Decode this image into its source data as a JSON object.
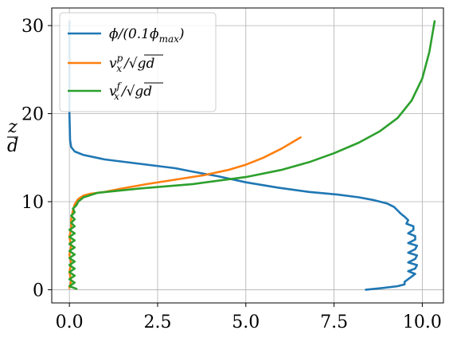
{
  "chart_data": {
    "type": "line",
    "ylabel_num": "z",
    "ylabel_den": "d",
    "xlim": [
      -0.5,
      10.6
    ],
    "ylim": [
      -1.5,
      32.0
    ],
    "xticks": [
      0.0,
      2.5,
      5.0,
      7.5,
      10.0
    ],
    "xtick_labels": [
      "0.0",
      "2.5",
      "5.0",
      "7.5",
      "10.0"
    ],
    "yticks": [
      0,
      10,
      20,
      30
    ],
    "ytick_labels": [
      "0",
      "10",
      "20",
      "30"
    ],
    "grid": true,
    "legend_position": "top-left",
    "series": [
      {
        "name": "ϕ/(0.1ϕmax)",
        "color": "#1f77b4",
        "points": [
          [
            8.4,
            0.0
          ],
          [
            8.9,
            0.2
          ],
          [
            9.3,
            0.4
          ],
          [
            9.5,
            0.6
          ],
          [
            9.5,
            0.9
          ],
          [
            9.6,
            1.2
          ],
          [
            9.7,
            1.5
          ],
          [
            9.8,
            1.8
          ],
          [
            9.6,
            2.1
          ],
          [
            9.8,
            2.4
          ],
          [
            9.85,
            2.8
          ],
          [
            9.6,
            3.1
          ],
          [
            9.8,
            3.5
          ],
          [
            9.85,
            3.9
          ],
          [
            9.6,
            4.2
          ],
          [
            9.8,
            4.6
          ],
          [
            9.85,
            5.0
          ],
          [
            9.6,
            5.3
          ],
          [
            9.8,
            5.7
          ],
          [
            9.8,
            6.1
          ],
          [
            9.6,
            6.4
          ],
          [
            9.75,
            6.8
          ],
          [
            9.75,
            7.2
          ],
          [
            9.55,
            7.5
          ],
          [
            9.6,
            7.9
          ],
          [
            9.5,
            8.3
          ],
          [
            9.4,
            8.6
          ],
          [
            9.3,
            9.0
          ],
          [
            9.2,
            9.4
          ],
          [
            9.0,
            9.8
          ],
          [
            8.6,
            10.2
          ],
          [
            8.2,
            10.5
          ],
          [
            7.6,
            10.8
          ],
          [
            6.8,
            11.1
          ],
          [
            5.9,
            11.6
          ],
          [
            5.0,
            12.2
          ],
          [
            4.2,
            12.9
          ],
          [
            3.5,
            13.4
          ],
          [
            3.0,
            13.8
          ],
          [
            2.0,
            14.3
          ],
          [
            1.0,
            14.8
          ],
          [
            0.4,
            15.3
          ],
          [
            0.15,
            15.7
          ],
          [
            0.05,
            16.2
          ],
          [
            0.02,
            17.0
          ],
          [
            0.0,
            20.0
          ],
          [
            0.0,
            25.0
          ],
          [
            0.0,
            30.5
          ]
        ]
      },
      {
        "name": "v_x^p/√gd",
        "color": "#ff7f0e",
        "points": [
          [
            0.0,
            0.2
          ],
          [
            0.05,
            1.0
          ],
          [
            0.0,
            2.0
          ],
          [
            0.05,
            3.0
          ],
          [
            0.0,
            4.0
          ],
          [
            0.05,
            5.0
          ],
          [
            0.0,
            6.0
          ],
          [
            0.05,
            7.0
          ],
          [
            0.05,
            8.0
          ],
          [
            0.1,
            9.0
          ],
          [
            0.15,
            9.7
          ],
          [
            0.25,
            10.3
          ],
          [
            0.4,
            10.7
          ],
          [
            0.6,
            10.9
          ],
          [
            1.0,
            11.1
          ],
          [
            1.5,
            11.5
          ],
          [
            2.2,
            12.0
          ],
          [
            3.0,
            12.5
          ],
          [
            3.8,
            13.0
          ],
          [
            4.5,
            13.6
          ],
          [
            5.0,
            14.2
          ],
          [
            5.5,
            15.0
          ],
          [
            6.0,
            16.0
          ],
          [
            6.55,
            17.3
          ]
        ]
      },
      {
        "name": "v_x^f/√gd",
        "color": "#2ca02c",
        "points": [
          [
            0.2,
            0.1
          ],
          [
            0.0,
            0.4
          ],
          [
            0.15,
            0.8
          ],
          [
            0.0,
            1.2
          ],
          [
            0.15,
            1.6
          ],
          [
            0.0,
            2.0
          ],
          [
            0.15,
            2.4
          ],
          [
            0.0,
            2.8
          ],
          [
            0.15,
            3.2
          ],
          [
            0.0,
            3.6
          ],
          [
            0.15,
            4.0
          ],
          [
            0.0,
            4.4
          ],
          [
            0.15,
            4.8
          ],
          [
            0.0,
            5.2
          ],
          [
            0.15,
            5.6
          ],
          [
            0.0,
            6.0
          ],
          [
            0.15,
            6.4
          ],
          [
            0.0,
            6.8
          ],
          [
            0.15,
            7.2
          ],
          [
            0.05,
            7.6
          ],
          [
            0.15,
            8.0
          ],
          [
            0.05,
            8.4
          ],
          [
            0.15,
            8.8
          ],
          [
            0.1,
            9.2
          ],
          [
            0.2,
            9.6
          ],
          [
            0.25,
            10.0
          ],
          [
            0.4,
            10.5
          ],
          [
            0.8,
            11.0
          ],
          [
            2.0,
            11.5
          ],
          [
            3.5,
            12.0
          ],
          [
            5.0,
            12.8
          ],
          [
            6.0,
            13.6
          ],
          [
            6.8,
            14.5
          ],
          [
            7.5,
            15.5
          ],
          [
            8.2,
            16.7
          ],
          [
            8.8,
            18.0
          ],
          [
            9.3,
            19.5
          ],
          [
            9.7,
            21.5
          ],
          [
            10.0,
            24.0
          ],
          [
            10.2,
            27.0
          ],
          [
            10.35,
            30.5
          ]
        ]
      }
    ]
  }
}
